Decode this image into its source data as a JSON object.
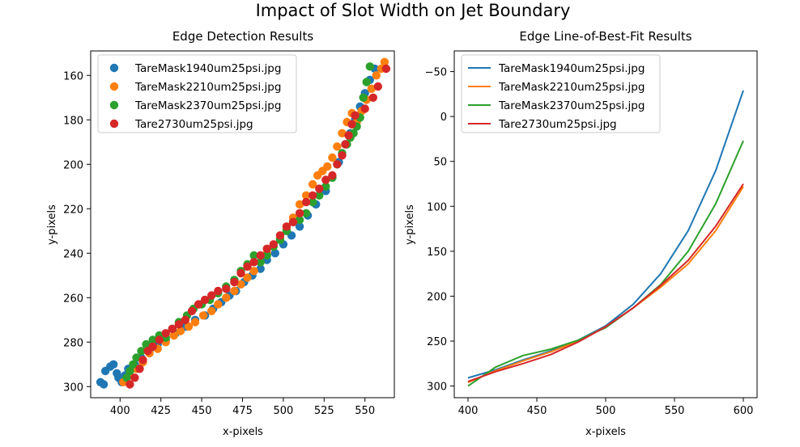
{
  "figure": {
    "suptitle": "Impact of Slot Width on Jet Boundary"
  },
  "chart_data": [
    {
      "type": "scatter",
      "title": "Edge Detection Results",
      "xlabel": "x-pixels",
      "ylabel": "y-pixels",
      "xlim": [
        382,
        568
      ],
      "ylim": [
        305,
        149
      ],
      "y_inverted": true,
      "xticks": [
        400,
        425,
        450,
        475,
        500,
        525,
        550
      ],
      "yticks": [
        160,
        180,
        200,
        220,
        240,
        260,
        280,
        300
      ],
      "grid": false,
      "legend": "top-left",
      "series": [
        {
          "name": "TareMask1940um25psi.jpg",
          "color": "#1f77b4",
          "x": [
            388,
            390,
            391,
            394,
            396,
            398,
            399,
            401,
            403,
            405,
            409,
            413,
            418,
            423,
            428,
            434,
            440,
            446,
            452,
            457,
            462,
            467,
            471,
            476,
            481,
            486,
            490,
            495,
            500,
            505,
            510,
            515,
            520,
            526,
            530,
            534,
            538,
            541,
            544,
            547,
            550,
            553,
            556
          ],
          "y": [
            298,
            299,
            293,
            291,
            290,
            294,
            296,
            298,
            295,
            292,
            290,
            287,
            284,
            281,
            279,
            276,
            273,
            270,
            268,
            265,
            262,
            259,
            257,
            253,
            250,
            247,
            243,
            240,
            236,
            232,
            228,
            223,
            218,
            212,
            206,
            199,
            191,
            186,
            180,
            174,
            168,
            162,
            157
          ]
        },
        {
          "name": "TareMask2210um25psi.jpg",
          "color": "#ff7f0e",
          "x": [
            402,
            406,
            410,
            414,
            418,
            423,
            428,
            433,
            437,
            442,
            446,
            451,
            456,
            460,
            465,
            470,
            474,
            478,
            482,
            486,
            490,
            494,
            498,
            502,
            506,
            510,
            514,
            518,
            521,
            524,
            527,
            530,
            533,
            536,
            539,
            542,
            545,
            548,
            551,
            554,
            557,
            560,
            562
          ],
          "y": [
            298,
            295,
            292,
            289,
            285,
            283,
            280,
            277,
            275,
            273,
            271,
            268,
            266,
            263,
            260,
            257,
            254,
            251,
            248,
            244,
            240,
            237,
            233,
            229,
            224,
            218,
            214,
            209,
            205,
            203,
            201,
            197,
            192,
            186,
            181,
            177,
            181,
            176,
            171,
            166,
            160,
            157,
            154
          ]
        },
        {
          "name": "TareMask2370um25psi.jpg",
          "color": "#2ca02c",
          "x": [
            404,
            406,
            408,
            410,
            413,
            416,
            420,
            424,
            428,
            432,
            436,
            441,
            445,
            450,
            455,
            460,
            465,
            470,
            474,
            478,
            482,
            486,
            490,
            494,
            498,
            502,
            506,
            510,
            514,
            518,
            522,
            526,
            530,
            533,
            536,
            539,
            541,
            543,
            545,
            547,
            549,
            551,
            553
          ],
          "y": [
            296,
            293,
            290,
            287,
            284,
            281,
            279,
            277,
            278,
            274,
            271,
            268,
            265,
            263,
            261,
            258,
            255,
            252,
            248,
            245,
            241,
            244,
            241,
            237,
            234,
            230,
            226,
            225,
            222,
            217,
            214,
            210,
            206,
            200,
            195,
            191,
            188,
            186,
            183,
            179,
            170,
            163,
            156
          ]
        },
        {
          "name": "Tare2730um25psi.jpg",
          "color": "#d62728",
          "x": [
            406,
            409,
            412,
            414,
            417,
            420,
            424,
            428,
            432,
            436,
            440,
            444,
            448,
            452,
            456,
            460,
            465,
            470,
            474,
            478,
            482,
            486,
            490,
            494,
            498,
            502,
            506,
            510,
            514,
            518,
            522,
            526,
            530,
            533,
            536,
            538,
            540,
            542,
            544,
            550,
            555,
            558,
            563
          ],
          "y": [
            299,
            296,
            292,
            288,
            284,
            282,
            279,
            276,
            274,
            272,
            270,
            266,
            263,
            261,
            259,
            257,
            256,
            253,
            249,
            246,
            244,
            241,
            238,
            236,
            232,
            228,
            226,
            222,
            217,
            214,
            211,
            207,
            205,
            200,
            196,
            191,
            187,
            182,
            178,
            175,
            170,
            165,
            157
          ]
        }
      ]
    },
    {
      "type": "line",
      "title": "Edge Line-of-Best-Fit Results",
      "xlabel": "x-pixels",
      "ylabel": "y-pixels",
      "xlim": [
        390,
        610
      ],
      "ylim": [
        313,
        -73
      ],
      "y_inverted": true,
      "xticks": [
        400,
        450,
        500,
        550,
        600
      ],
      "yticks": [
        -50,
        0,
        50,
        100,
        150,
        200,
        250,
        300
      ],
      "grid": false,
      "legend": "top-left",
      "series": [
        {
          "name": "TareMask1940um25psi.jpg",
          "color": "#1f77b4",
          "x": [
            400,
            420,
            440,
            460,
            480,
            500,
            520,
            540,
            560,
            580,
            600
          ],
          "y": [
            291,
            282,
            271,
            261,
            249,
            233,
            209,
            175,
            127,
            60,
            -29
          ]
        },
        {
          "name": "TareMask2210um25psi.jpg",
          "color": "#ff7f0e",
          "x": [
            400,
            420,
            440,
            460,
            480,
            500,
            520,
            540,
            560,
            580,
            600
          ],
          "y": [
            296,
            283,
            272,
            262,
            250,
            234,
            213,
            190,
            164,
            127,
            78
          ]
        },
        {
          "name": "TareMask2370um25psi.jpg",
          "color": "#2ca02c",
          "x": [
            400,
            420,
            440,
            460,
            480,
            500,
            520,
            540,
            560,
            580,
            600
          ],
          "y": [
            300,
            279,
            266,
            259,
            249,
            235,
            213,
            187,
            150,
            97,
            27
          ]
        },
        {
          "name": "Tare2730um25psi.jpg",
          "color": "#d62728",
          "x": [
            400,
            420,
            440,
            460,
            480,
            500,
            520,
            540,
            560,
            580,
            600
          ],
          "y": [
            295,
            284,
            275,
            265,
            251,
            234,
            213,
            188,
            160,
            122,
            75
          ]
        }
      ]
    }
  ]
}
